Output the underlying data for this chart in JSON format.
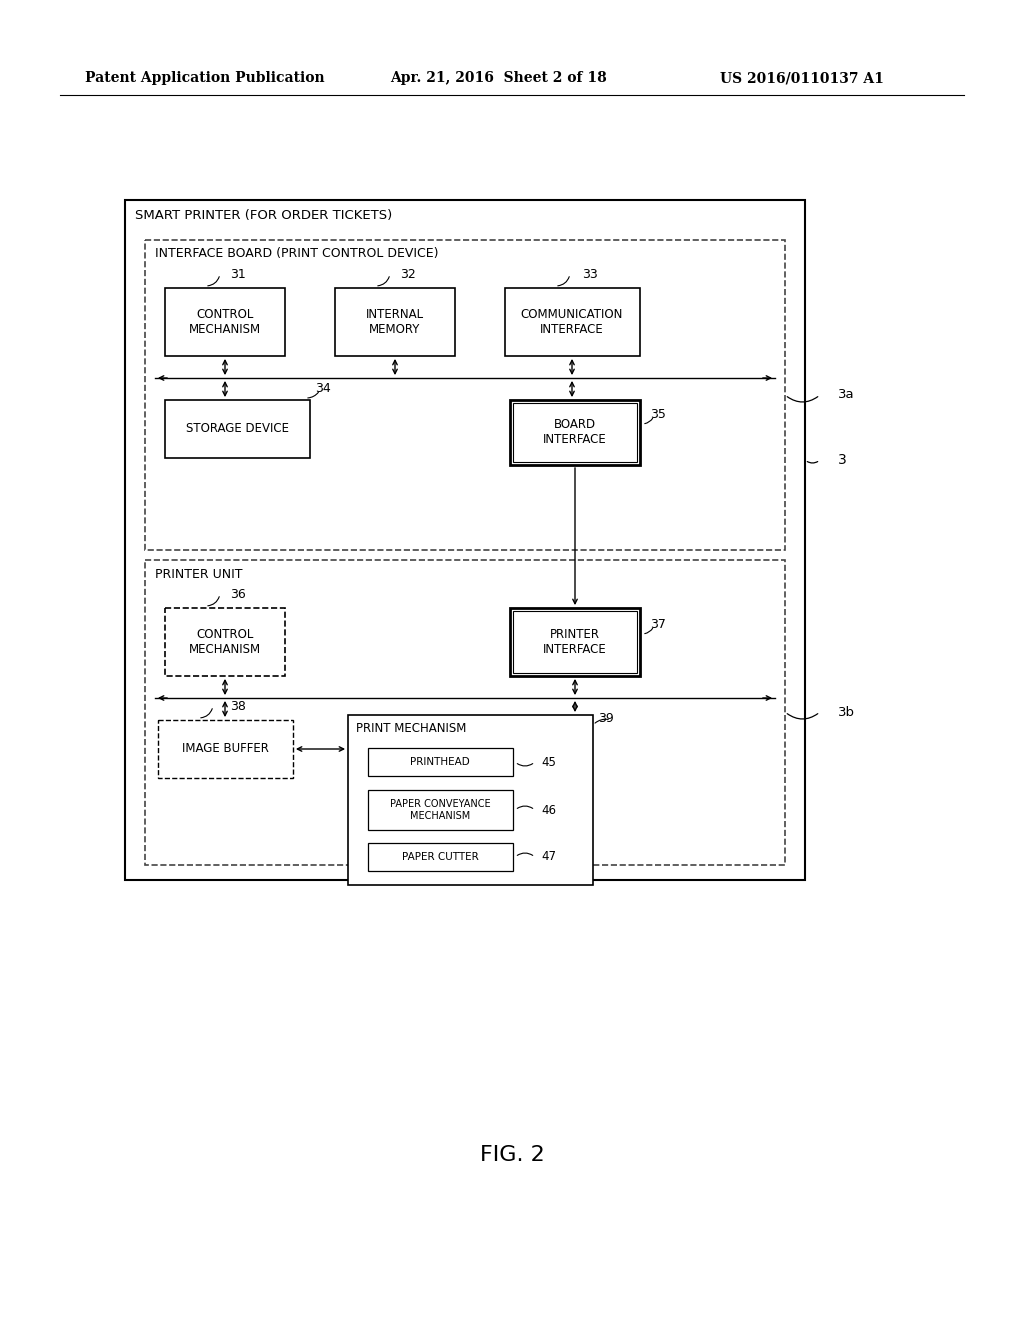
{
  "bg_color": "#ffffff",
  "header_left": "Patent Application Publication",
  "header_mid": "Apr. 21, 2016  Sheet 2 of 18",
  "header_right": "US 2016/0110137 A1",
  "fig_label": "FIG. 2",
  "outer_box_label": "SMART PRINTER (FOR ORDER TICKETS)",
  "interface_board_label": "INTERFACE BOARD (PRINT CONTROL DEVICE)",
  "printer_unit_label": "PRINTER UNIT",
  "ref_3": "3",
  "ref_3a": "3a",
  "ref_3b": "3b"
}
